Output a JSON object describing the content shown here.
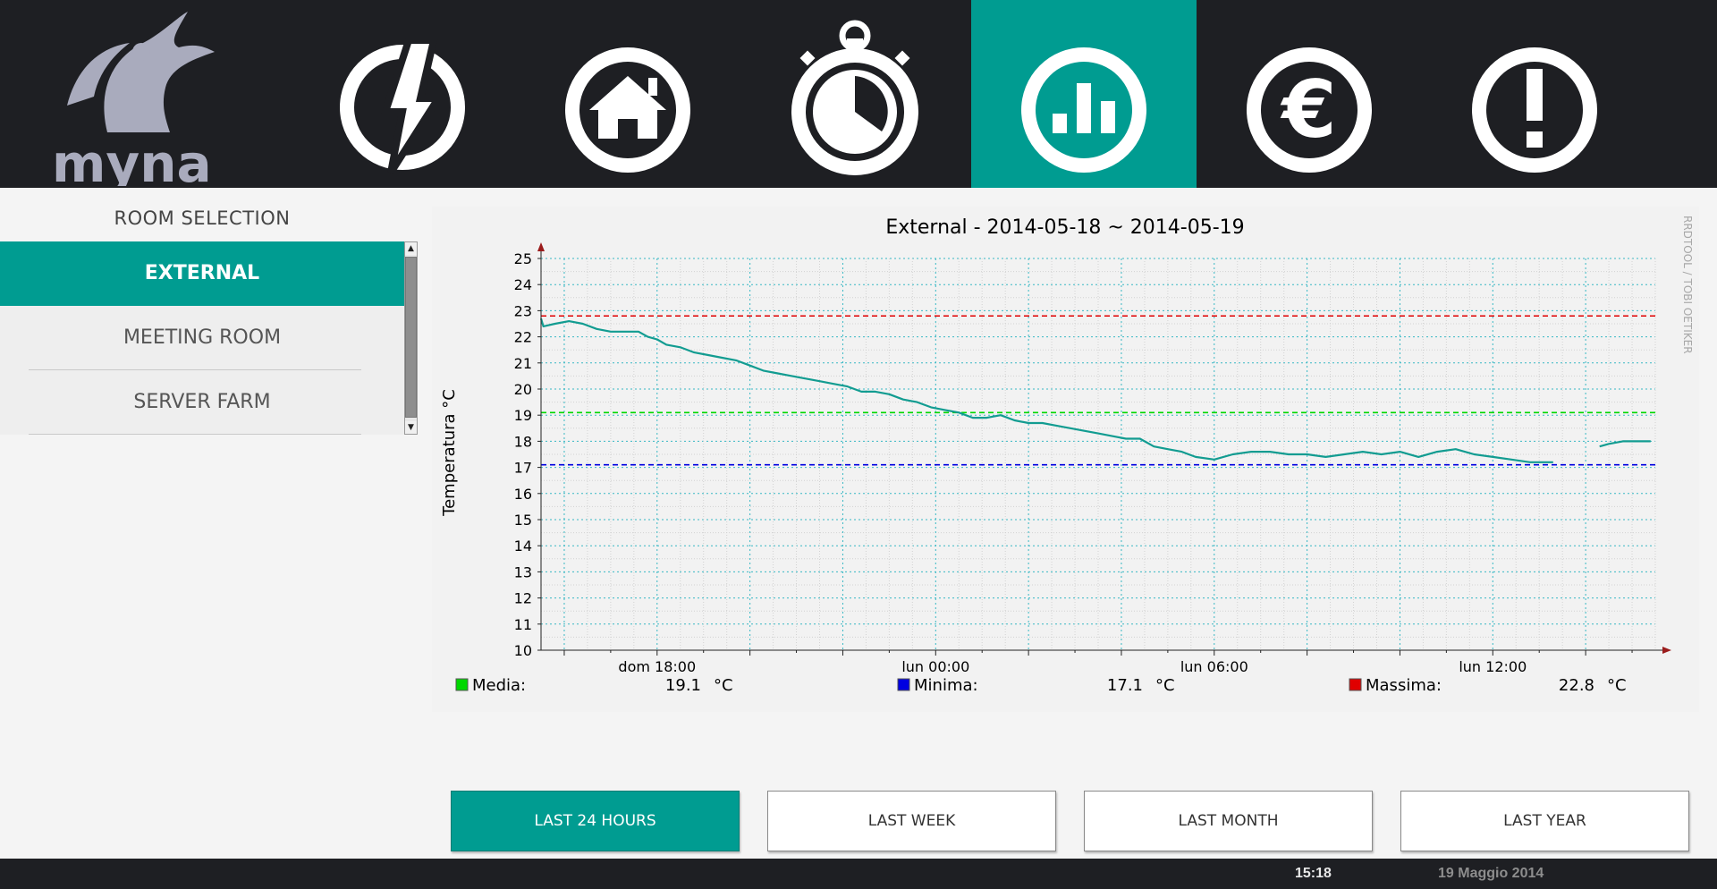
{
  "app": {
    "logo_text": "myna"
  },
  "nav": {
    "items": [
      {
        "icon": "power-bolt-icon",
        "active": false
      },
      {
        "icon": "home-icon",
        "active": false
      },
      {
        "icon": "stopwatch-icon",
        "active": false
      },
      {
        "icon": "bar-chart-icon",
        "active": true
      },
      {
        "icon": "euro-icon",
        "active": false
      },
      {
        "icon": "alert-icon",
        "active": false
      }
    ]
  },
  "sidebar": {
    "title": "ROOM SELECTION",
    "rooms": [
      {
        "label": "EXTERNAL",
        "active": true
      },
      {
        "label": "MEETING ROOM",
        "active": false
      },
      {
        "label": "SERVER FARM",
        "active": false
      }
    ]
  },
  "chart_data": {
    "type": "line",
    "title": "External - 2014-05-18 ~ 2014-05-19",
    "ylabel": "Temperatura °C",
    "xlabel": "",
    "watermark": "RRDTOOL / TOBI OETIKER",
    "ylim": [
      10,
      25
    ],
    "yticks": [
      10,
      11,
      12,
      13,
      14,
      15,
      16,
      17,
      18,
      19,
      20,
      21,
      22,
      23,
      24,
      25
    ],
    "x_hours_range": [
      -2.5,
      21.5
    ],
    "x_ticks": [
      {
        "label": "dom 18:00",
        "hour": 0
      },
      {
        "label": "lun 00:00",
        "hour": 6
      },
      {
        "label": "lun 06:00",
        "hour": 12
      },
      {
        "label": "lun 12:00",
        "hour": 18
      }
    ],
    "grid": true,
    "series": [
      {
        "name": "",
        "color": "#129c91",
        "segments": [
          [
            [
              -2.5,
              22.7
            ],
            [
              -2.45,
              22.4
            ],
            [
              -2.2,
              22.5
            ],
            [
              -1.9,
              22.6
            ],
            [
              -1.6,
              22.5
            ],
            [
              -1.3,
              22.3
            ],
            [
              -1.0,
              22.2
            ],
            [
              -0.7,
              22.2
            ],
            [
              -0.4,
              22.2
            ],
            [
              -0.2,
              22.0
            ],
            [
              0.0,
              21.9
            ],
            [
              0.2,
              21.7
            ],
            [
              0.5,
              21.6
            ],
            [
              0.8,
              21.4
            ],
            [
              1.1,
              21.3
            ],
            [
              1.4,
              21.2
            ],
            [
              1.7,
              21.1
            ],
            [
              2.0,
              20.9
            ],
            [
              2.3,
              20.7
            ],
            [
              2.6,
              20.6
            ],
            [
              2.9,
              20.5
            ],
            [
              3.2,
              20.4
            ],
            [
              3.5,
              20.3
            ],
            [
              3.8,
              20.2
            ],
            [
              4.1,
              20.1
            ],
            [
              4.4,
              19.9
            ],
            [
              4.7,
              19.9
            ],
            [
              5.0,
              19.8
            ],
            [
              5.3,
              19.6
            ],
            [
              5.6,
              19.5
            ],
            [
              5.9,
              19.3
            ],
            [
              6.2,
              19.2
            ],
            [
              6.5,
              19.1
            ],
            [
              6.8,
              18.9
            ],
            [
              7.1,
              18.9
            ],
            [
              7.4,
              19.0
            ],
            [
              7.7,
              18.8
            ],
            [
              8.0,
              18.7
            ],
            [
              8.3,
              18.7
            ],
            [
              8.6,
              18.6
            ],
            [
              8.9,
              18.5
            ],
            [
              9.2,
              18.4
            ],
            [
              9.5,
              18.3
            ],
            [
              9.8,
              18.2
            ],
            [
              10.1,
              18.1
            ],
            [
              10.4,
              18.1
            ],
            [
              10.7,
              17.8
            ],
            [
              11.0,
              17.7
            ],
            [
              11.3,
              17.6
            ],
            [
              11.6,
              17.4
            ],
            [
              12.0,
              17.3
            ],
            [
              12.4,
              17.5
            ],
            [
              12.8,
              17.6
            ],
            [
              13.2,
              17.6
            ],
            [
              13.6,
              17.5
            ],
            [
              14.0,
              17.5
            ],
            [
              14.4,
              17.4
            ],
            [
              14.8,
              17.5
            ],
            [
              15.2,
              17.6
            ],
            [
              15.6,
              17.5
            ],
            [
              16.0,
              17.6
            ],
            [
              16.4,
              17.4
            ],
            [
              16.8,
              17.6
            ],
            [
              17.2,
              17.7
            ],
            [
              17.6,
              17.5
            ],
            [
              18.0,
              17.4
            ],
            [
              18.4,
              17.3
            ],
            [
              18.8,
              17.2
            ],
            [
              19.1,
              17.2
            ],
            [
              19.3,
              17.2
            ]
          ],
          [
            [
              20.3,
              17.8
            ],
            [
              20.5,
              17.9
            ],
            [
              20.8,
              18.0
            ],
            [
              21.1,
              18.0
            ],
            [
              21.4,
              18.0
            ]
          ]
        ]
      }
    ],
    "hlines": [
      {
        "name": "Media",
        "value": 19.1,
        "color": "#00d800"
      },
      {
        "name": "Minima",
        "value": 17.1,
        "color": "#0000e0"
      },
      {
        "name": "Massima",
        "value": 22.8,
        "color": "#e00000"
      }
    ],
    "legend": [
      {
        "name": "Media:",
        "value": "19.1",
        "unit": "°C",
        "color": "#00d800"
      },
      {
        "name": "Minima:",
        "value": "17.1",
        "unit": "°C",
        "color": "#0000e0"
      },
      {
        "name": "Massima:",
        "value": "22.8",
        "unit": "°C",
        "color": "#e00000"
      }
    ]
  },
  "range_buttons": [
    {
      "label": "LAST 24 HOURS",
      "active": true
    },
    {
      "label": "LAST WEEK",
      "active": false
    },
    {
      "label": "LAST MONTH",
      "active": false
    },
    {
      "label": "LAST YEAR",
      "active": false
    }
  ],
  "footer": {
    "time": "15:18",
    "date": "19 Maggio 2014"
  },
  "colors": {
    "accent": "#009c91",
    "topbar": "#1e1f23"
  }
}
